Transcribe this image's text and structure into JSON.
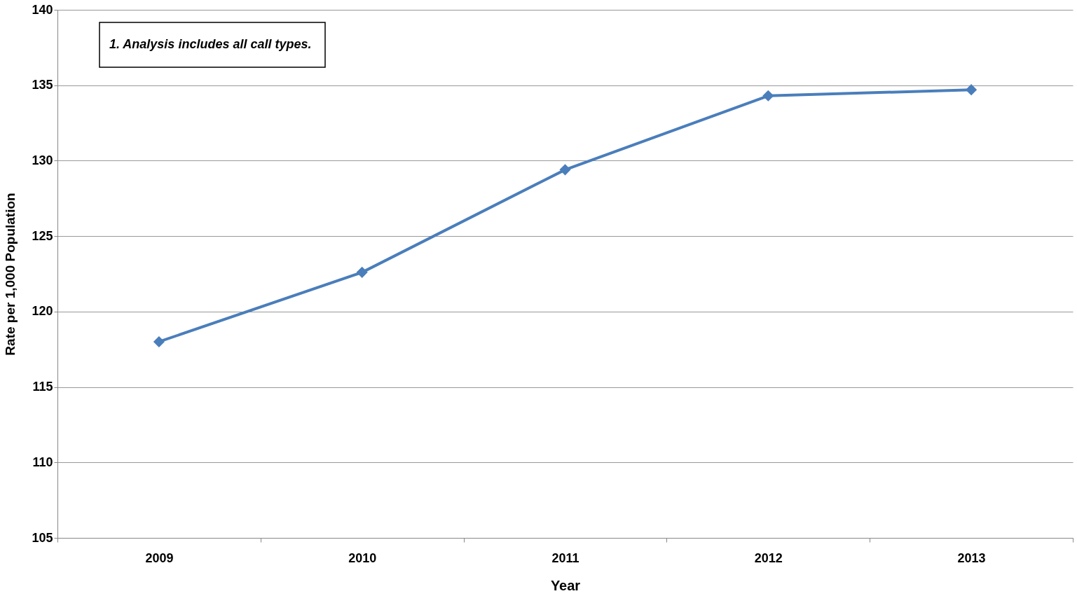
{
  "chart_data": {
    "type": "line",
    "xlabel": "Year",
    "ylabel": "Rate per 1,000 Population",
    "categories": [
      "2009",
      "2010",
      "2011",
      "2012",
      "2013"
    ],
    "series": [
      {
        "color": "#4a7ebb",
        "values": [
          118.0,
          122.6,
          129.4,
          134.3,
          134.7
        ]
      }
    ],
    "ylim": [
      105,
      140
    ],
    "yticks": [
      105,
      110,
      115,
      120,
      125,
      130,
      135,
      140
    ],
    "grid": "y",
    "marker": "diamond",
    "line_style": "solid",
    "annotations": [
      "1. Analysis  includes all call types."
    ]
  }
}
